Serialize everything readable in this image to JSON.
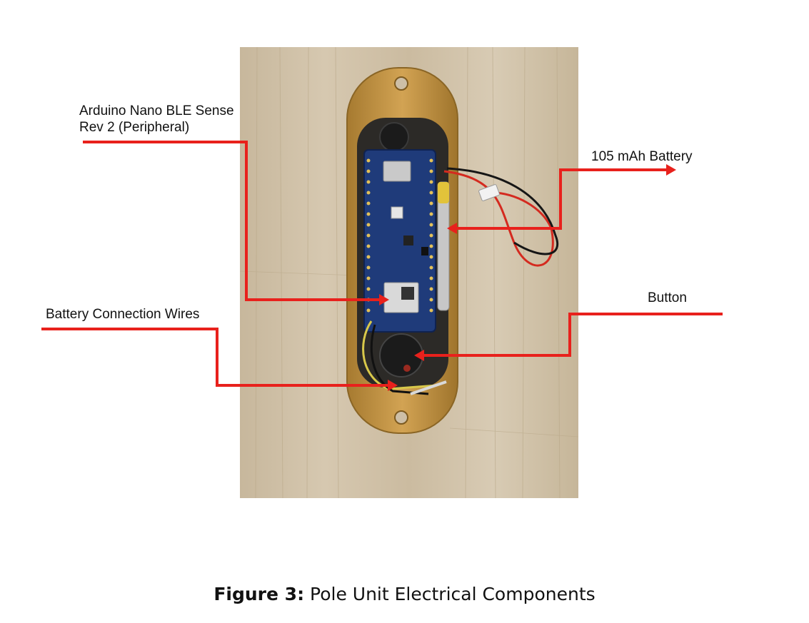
{
  "labels": {
    "arduino_line1": "Arduino Nano BLE Sense",
    "arduino_line2": "Rev 2 (Peripheral)",
    "battery": "105 mAh Battery",
    "button": "Button",
    "wires": "Battery Connection Wires"
  },
  "caption": {
    "prefix": "Figure 3:",
    "text": "Pole Unit Electrical Components"
  },
  "colors": {
    "leader": "#e8211c",
    "housing": "#c9953f",
    "board": "#1f3b7a",
    "wood": "#cdbfa7"
  }
}
